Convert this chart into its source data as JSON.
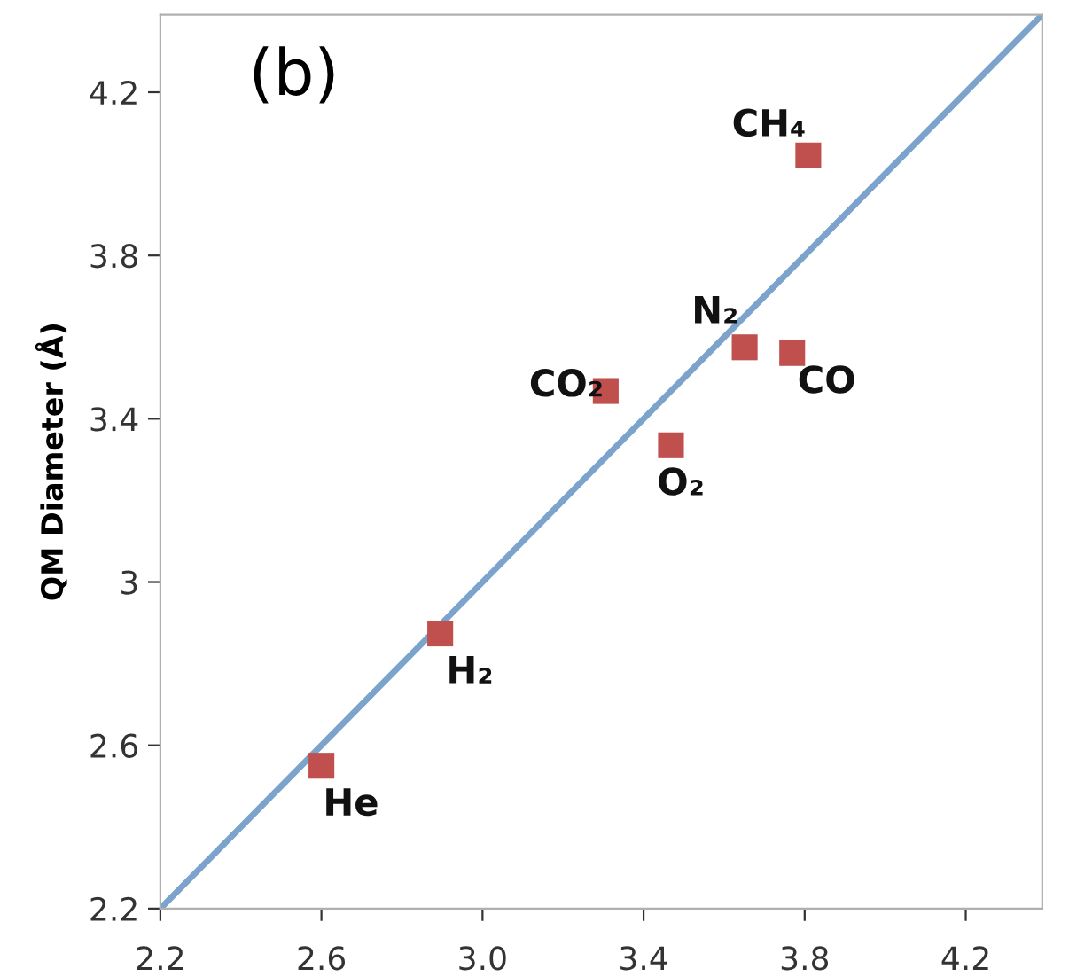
{
  "chart_data": [
    {
      "type": "scatter",
      "ylabel": "QM Diameter (Å)",
      "marker": "square",
      "xlim": [
        2.2,
        4.39
      ],
      "ylim": [
        2.2,
        4.39
      ],
      "xticks": [
        2.2,
        2.6,
        {
          "value": 3,
          "label": "3.0"
        },
        3.4,
        3.8,
        4.2
      ],
      "yticks": [
        2.2,
        2.6,
        3,
        3.4,
        3.8,
        4.2
      ],
      "grid": false,
      "series": [
        {
          "color": "#c0504d",
          "x": [
            2.6,
            2.895,
            3.306,
            3.468,
            3.651,
            3.769,
            3.809
          ],
          "values": [
            2.55,
            2.874,
            3.468,
            3.335,
            3.575,
            3.561,
            4.045
          ]
        },
        {
          "type": "line",
          "color": "#7ba3cc",
          "x": [
            2.2,
            4.39
          ],
          "values": [
            2.2,
            4.39
          ],
          "marker": "none",
          "line_style": "solid"
        }
      ],
      "annotations": [
        "(b)",
        {
          "text": "He",
          "x": 2.6,
          "y": 2.55
        },
        {
          "text": "H₂",
          "x": 2.895,
          "y": 2.874
        },
        {
          "text": "CO₂",
          "x": 3.306,
          "y": 3.468
        },
        {
          "text": "O₂",
          "x": 3.468,
          "y": 3.335
        },
        {
          "text": "N₂",
          "x": 3.651,
          "y": 3.575
        },
        {
          "text": "CO",
          "x": 3.769,
          "y": 3.561
        },
        {
          "text": "CH₄",
          "x": 3.809,
          "y": 4.045
        }
      ]
    }
  ]
}
